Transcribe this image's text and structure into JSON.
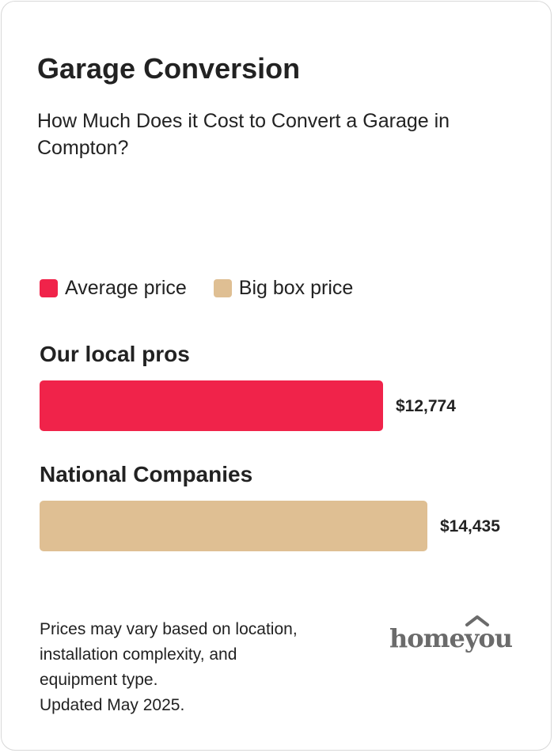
{
  "title": "Garage Conversion",
  "subtitle": "How Much Does it Cost to Convert a Garage in Compton?",
  "legend": [
    {
      "label": "Average price",
      "color": "#f0234a"
    },
    {
      "label": "Big box price",
      "color": "#dfbf93"
    }
  ],
  "chart_data": {
    "type": "bar",
    "orientation": "horizontal",
    "categories": [
      "Our local pros",
      "National Companies"
    ],
    "series": [
      {
        "name": "Average price",
        "values": [
          12774,
          null
        ]
      },
      {
        "name": "Big box price",
        "values": [
          null,
          14435
        ]
      }
    ],
    "value_labels": [
      "$12,774",
      "$14,435"
    ],
    "colors": [
      "#f0234a",
      "#dfbf93"
    ]
  },
  "note_lines": [
    "Prices may vary based on location,",
    "installation complexity, and",
    "equipment type.",
    "Updated May 2025."
  ],
  "logo": {
    "text": "homeyou"
  }
}
